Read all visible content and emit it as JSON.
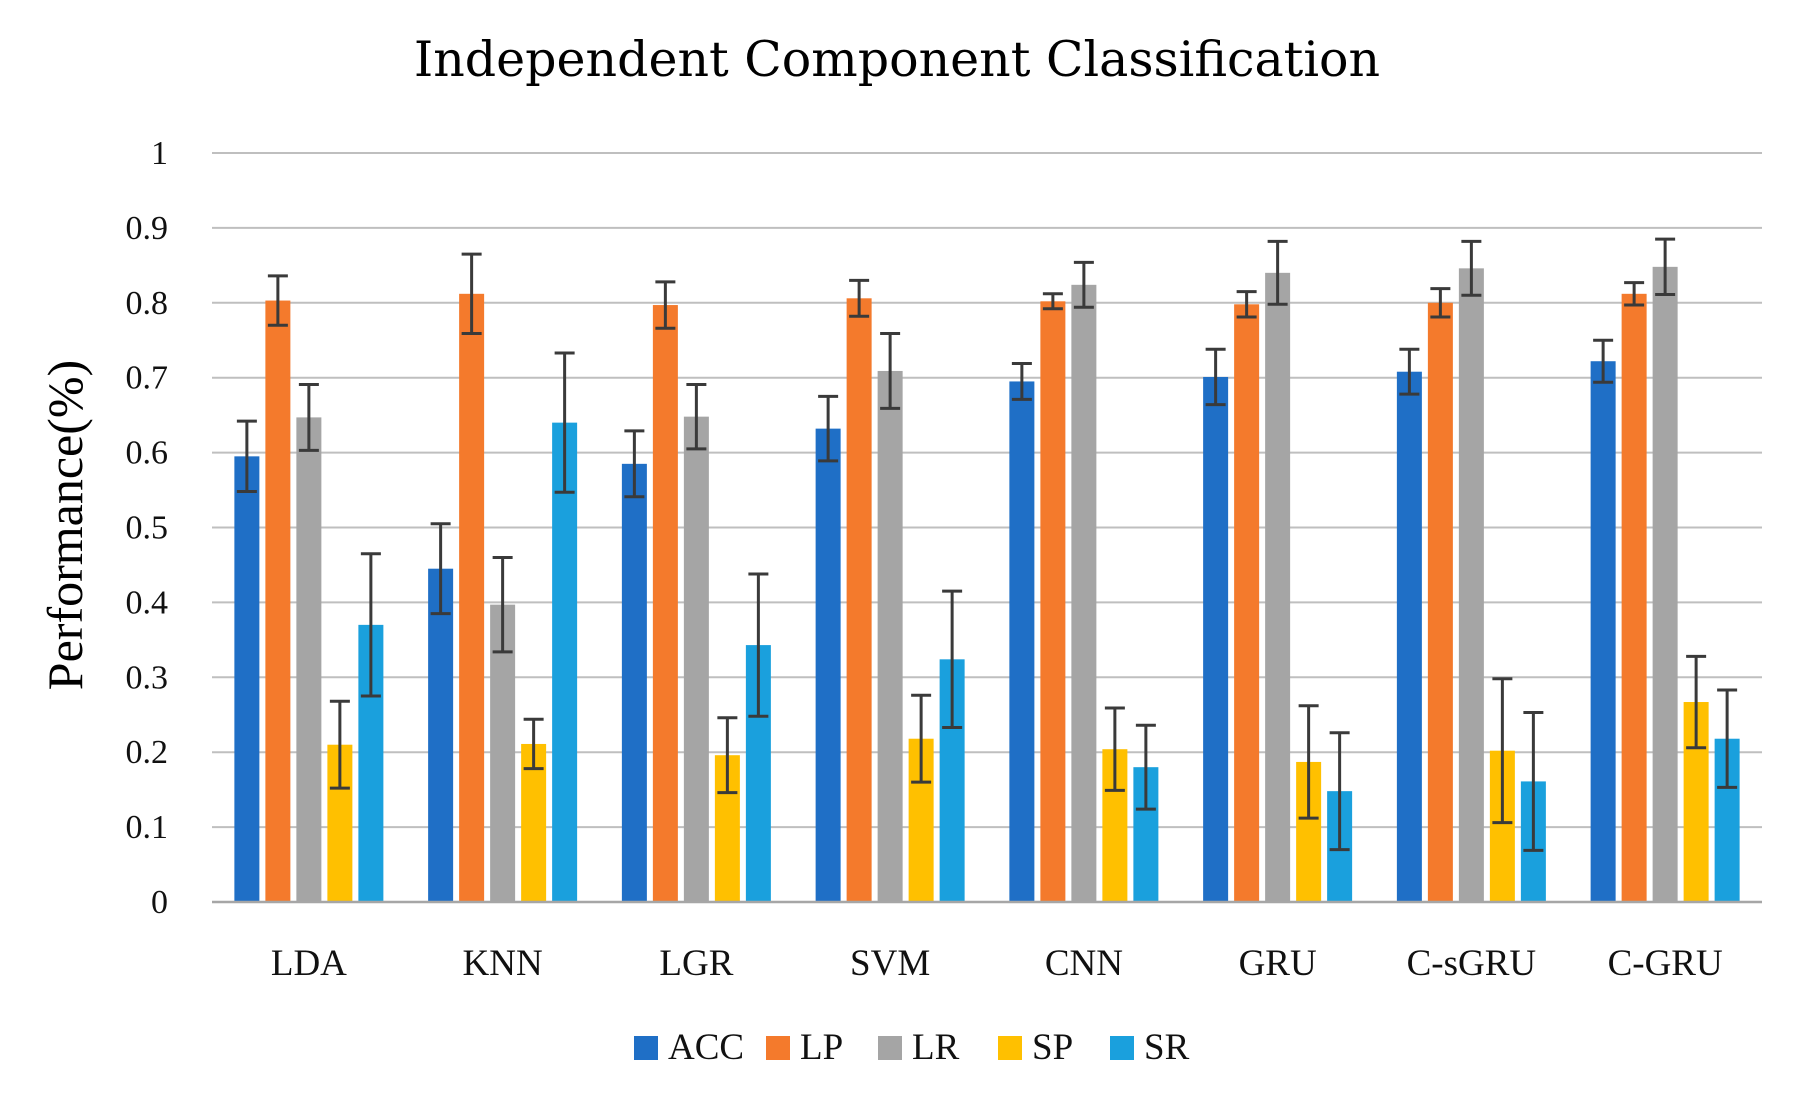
{
  "chart_data": {
    "type": "bar",
    "title": "Independent Component Classification",
    "xlabel": "",
    "ylabel": "Performance(%)",
    "ylim": [
      0,
      1
    ],
    "yticks": [
      "0",
      "0.1",
      "0.2",
      "0.3",
      "0.4",
      "0.5",
      "0.6",
      "0.7",
      "0.8",
      "0.9",
      "1"
    ],
    "grid": true,
    "legend_position": "bottom",
    "categories": [
      "LDA",
      "KNN",
      "LGR",
      "SVM",
      "CNN",
      "GRU",
      "C-sGRU",
      "C-GRU"
    ],
    "series": [
      {
        "name": "ACC",
        "color": "#1f6fc6",
        "values": [
          0.595,
          0.445,
          0.585,
          0.632,
          0.695,
          0.701,
          0.708,
          0.722
        ],
        "errors": [
          0.047,
          0.06,
          0.044,
          0.043,
          0.024,
          0.037,
          0.03,
          0.028
        ]
      },
      {
        "name": "LP",
        "color": "#f47a2c",
        "values": [
          0.803,
          0.812,
          0.797,
          0.806,
          0.802,
          0.798,
          0.8,
          0.812
        ],
        "errors": [
          0.033,
          0.053,
          0.031,
          0.024,
          0.01,
          0.017,
          0.019,
          0.015
        ]
      },
      {
        "name": "LR",
        "color": "#a5a5a5",
        "values": [
          0.647,
          0.397,
          0.648,
          0.709,
          0.824,
          0.84,
          0.846,
          0.848
        ],
        "errors": [
          0.044,
          0.063,
          0.043,
          0.05,
          0.03,
          0.042,
          0.036,
          0.037
        ]
      },
      {
        "name": "SP",
        "color": "#ffc000",
        "values": [
          0.21,
          0.211,
          0.196,
          0.218,
          0.204,
          0.187,
          0.202,
          0.267
        ],
        "errors": [
          0.058,
          0.033,
          0.05,
          0.058,
          0.055,
          0.075,
          0.096,
          0.061
        ]
      },
      {
        "name": "SR",
        "color": "#1aa0dd",
        "values": [
          0.37,
          0.64,
          0.343,
          0.324,
          0.18,
          0.148,
          0.161,
          0.218
        ],
        "errors": [
          0.095,
          0.093,
          0.095,
          0.091,
          0.056,
          0.078,
          0.092,
          0.065
        ]
      }
    ]
  }
}
